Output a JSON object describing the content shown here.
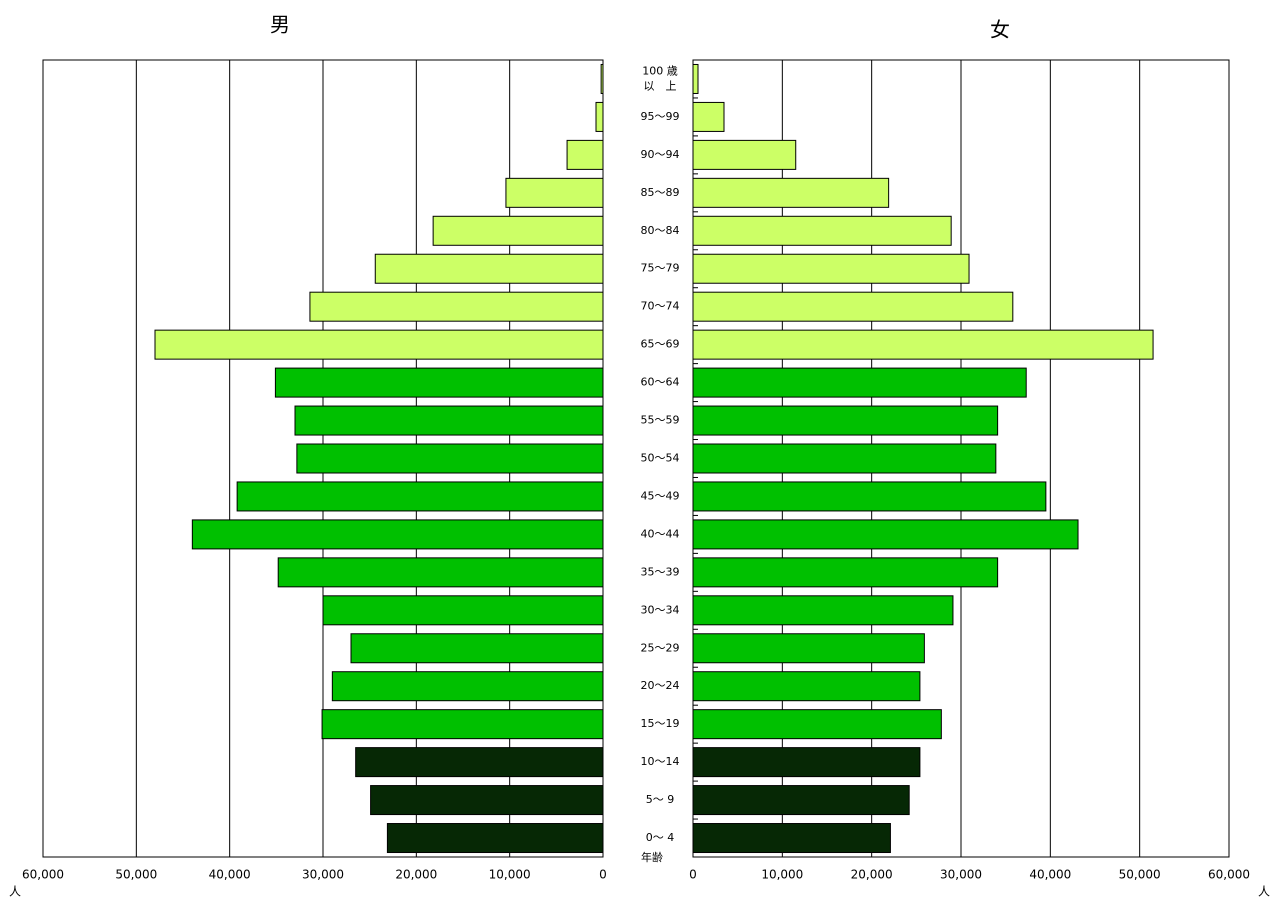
{
  "chart_data": {
    "type": "pyramid",
    "categories": [
      "0～ 4",
      "5～ 9",
      "10～14",
      "15～19",
      "20～24",
      "25～29",
      "30～34",
      "35～39",
      "40～44",
      "45～49",
      "50～54",
      "55～59",
      "60～64",
      "65～69",
      "70～74",
      "75～79",
      "80～84",
      "85～89",
      "90～94",
      "95～99",
      "100 歳\n以　上"
    ],
    "colors": [
      "#062805",
      "#062805",
      "#062805",
      "#00c000",
      "#00c000",
      "#00c000",
      "#00c000",
      "#00c000",
      "#00c000",
      "#00c000",
      "#00c000",
      "#00c000",
      "#00c000",
      "#ccff66",
      "#ccff66",
      "#ccff66",
      "#ccff66",
      "#ccff66",
      "#ccff66",
      "#ccff66",
      "#ccff66"
    ],
    "series": [
      {
        "name": "男",
        "values": [
          23100,
          24900,
          26500,
          30100,
          29000,
          27000,
          30000,
          34800,
          44000,
          39200,
          32800,
          33000,
          35100,
          48000,
          31400,
          24400,
          18200,
          10400,
          3850,
          750,
          200
        ]
      },
      {
        "name": "女",
        "values": [
          22100,
          24200,
          25400,
          27800,
          25400,
          25900,
          29100,
          34100,
          43100,
          39500,
          33900,
          34100,
          37300,
          51500,
          35800,
          30900,
          28900,
          21900,
          11500,
          3470,
          560
        ]
      }
    ],
    "xlim": [
      0,
      60000
    ],
    "xticks": [
      0,
      {
        "value": 10000,
        "label": "10,000"
      },
      {
        "value": 20000,
        "label": "20,000"
      },
      {
        "value": 30000,
        "label": "30,000"
      },
      {
        "value": 40000,
        "label": "40,000"
      },
      {
        "value": 50000,
        "label": "50,000"
      },
      {
        "value": 60000,
        "label": "60,000"
      }
    ],
    "x_label": "人",
    "y_label": "年齢",
    "grid": true
  }
}
